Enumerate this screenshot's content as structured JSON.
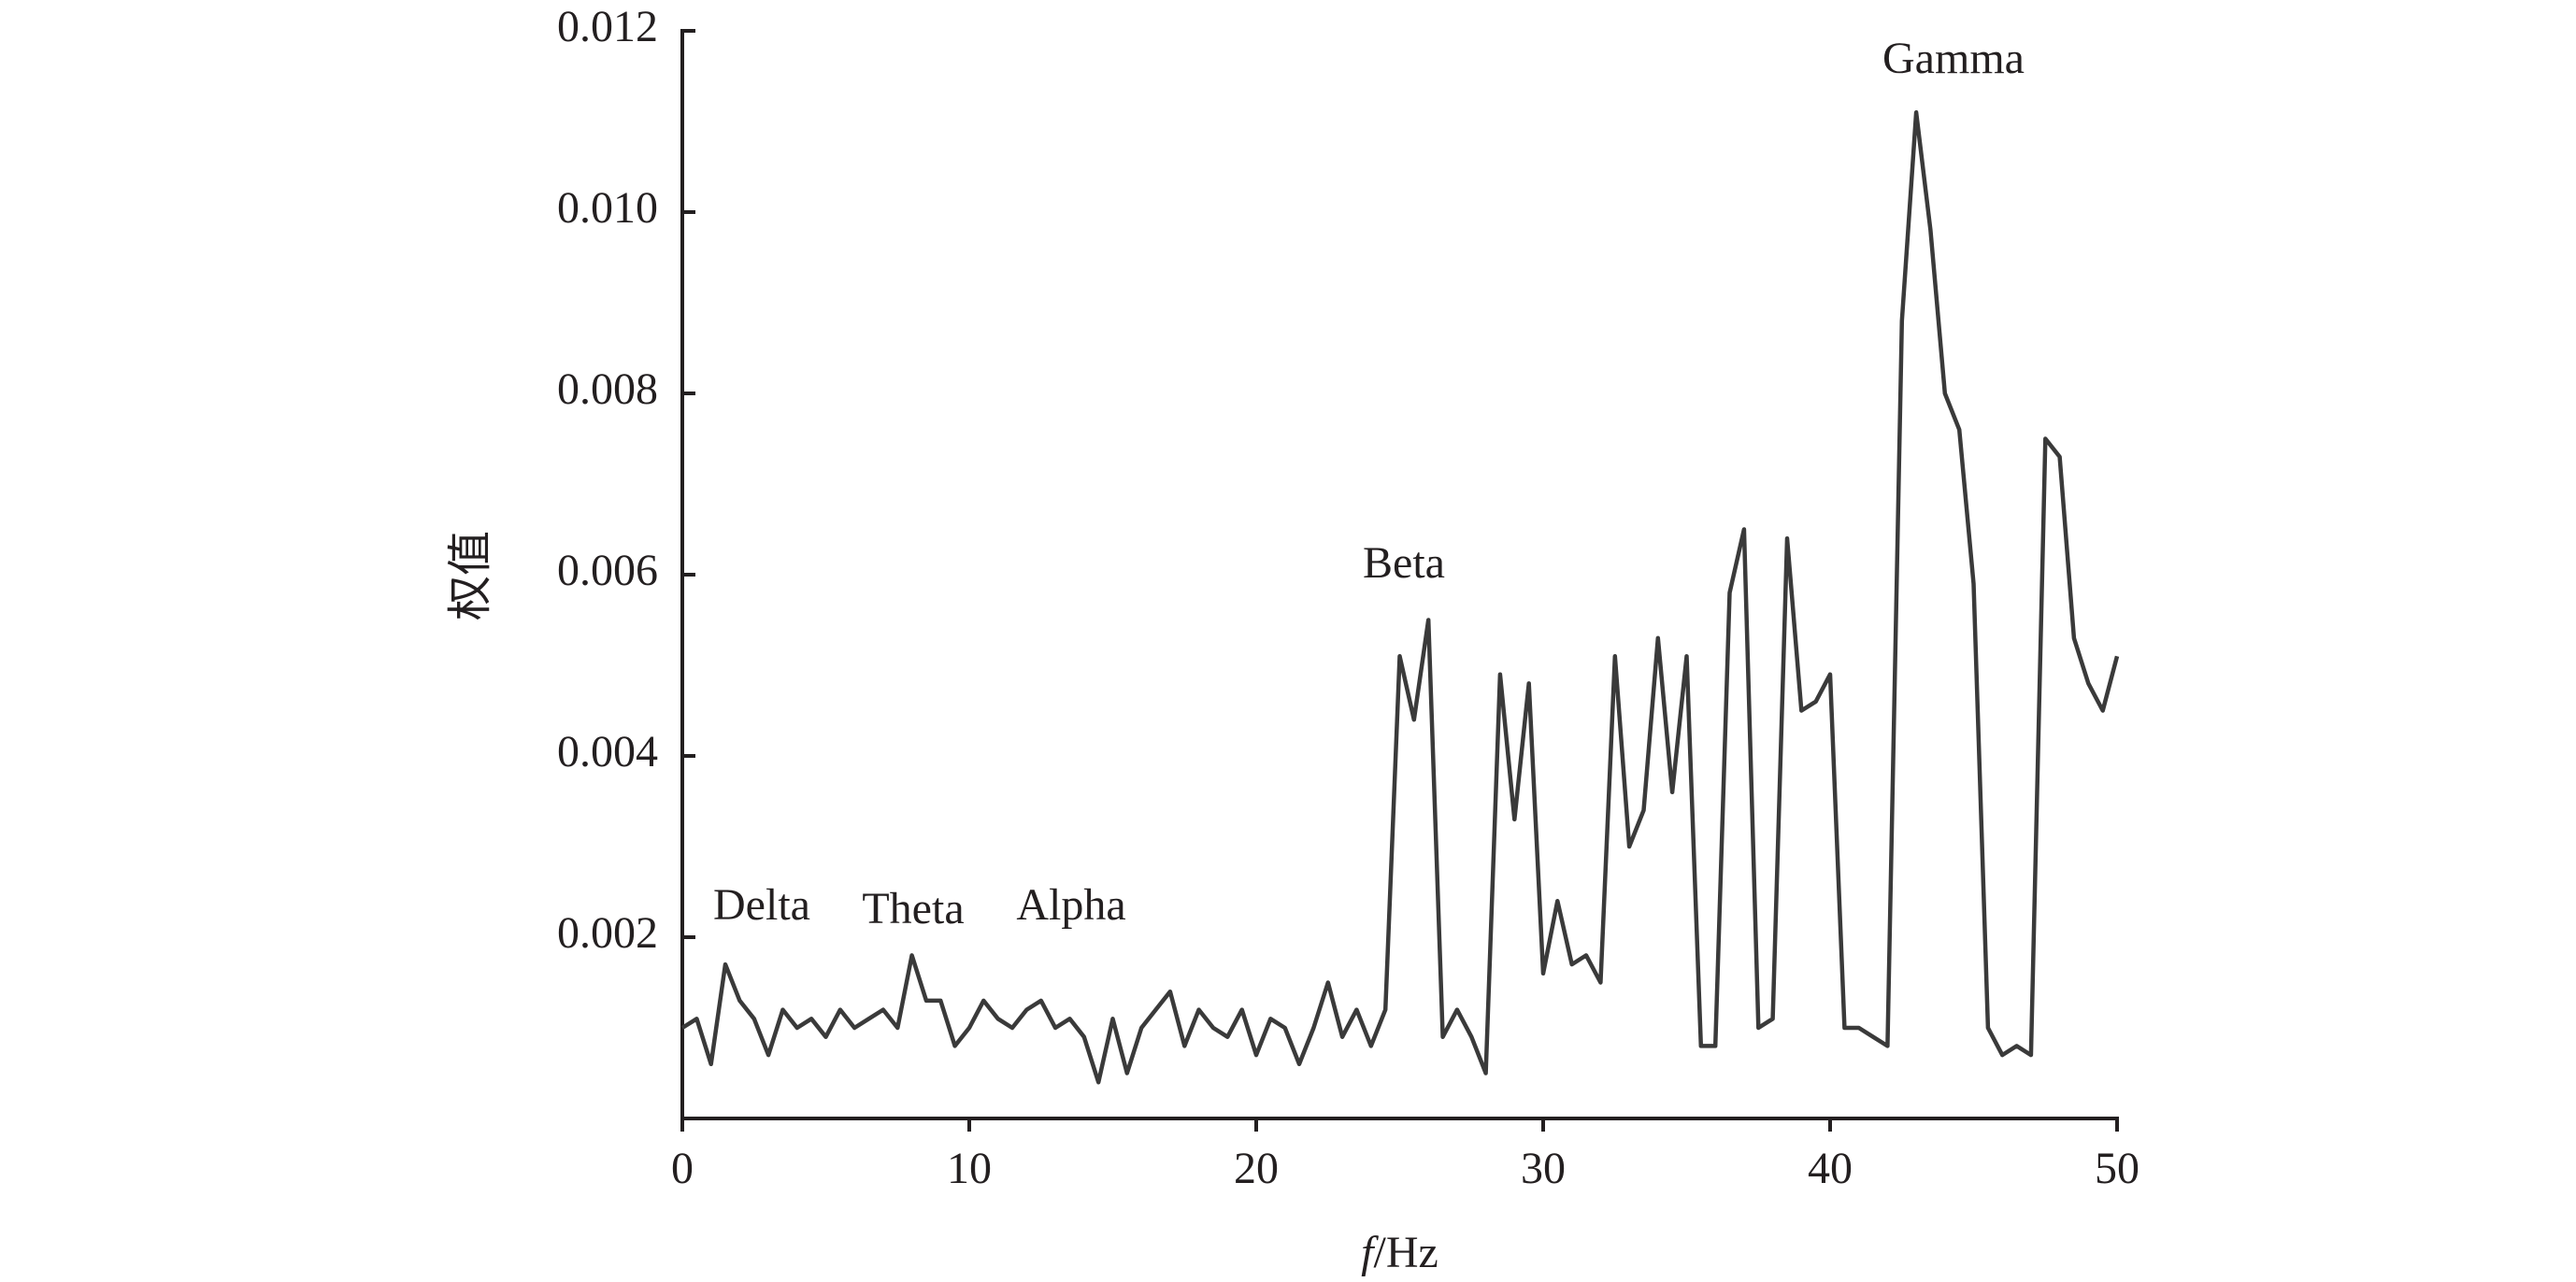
{
  "chart_data": {
    "type": "line",
    "xlabel": "f/Hz",
    "ylabel": "权值",
    "annotations": [
      "Delta",
      "Theta",
      "Alpha",
      "Beta",
      "Gamma"
    ],
    "xlim": [
      0,
      50
    ],
    "xticks": [
      0,
      10,
      20,
      30,
      40,
      50
    ],
    "ylim": [
      0,
      0.012
    ],
    "yticks": [
      0.002,
      0.004,
      0.006,
      0.008,
      {
        "value": 0.01,
        "label": "0.010"
      },
      0.012
    ],
    "grid": false,
    "series": [
      {
        "color": "#3a3a3a",
        "x": [
          0,
          0.5,
          1,
          1.5,
          2,
          2.5,
          3,
          3.5,
          4,
          4.5,
          5,
          5.5,
          6,
          6.5,
          7,
          7.5,
          8,
          8.5,
          9,
          9.5,
          10,
          10.5,
          11,
          11.5,
          12,
          12.5,
          13,
          13.5,
          14,
          14.5,
          15,
          15.5,
          16,
          16.5,
          17,
          17.5,
          18,
          18.5,
          19,
          19.5,
          20,
          20.5,
          21,
          21.5,
          22,
          22.5,
          23,
          23.5,
          24,
          24.5,
          25,
          25.5,
          26,
          26.5,
          27,
          27.5,
          28,
          28.5,
          29,
          29.5,
          30,
          30.5,
          31,
          31.5,
          32,
          32.5,
          33,
          33.5,
          34,
          34.5,
          35,
          35.5,
          36,
          36.5,
          37,
          37.5,
          38,
          38.5,
          39,
          39.5,
          40,
          40.5,
          41,
          41.5,
          42,
          42.5,
          43,
          43.5,
          44,
          44.5,
          45,
          45.5,
          46,
          46.5,
          47,
          47.5,
          48,
          48.5,
          49,
          49.5,
          50
        ],
        "values": [
          0.001,
          0.0011,
          0.0006,
          0.0017,
          0.0013,
          0.0011,
          0.0007,
          0.0012,
          0.001,
          0.0011,
          0.0009,
          0.0012,
          0.001,
          0.0011,
          0.0012,
          0.001,
          0.0018,
          0.0013,
          0.0013,
          0.0008,
          0.001,
          0.0013,
          0.0011,
          0.001,
          0.0012,
          0.0013,
          0.001,
          0.0011,
          0.0009,
          0.0004,
          0.0011,
          0.0005,
          0.001,
          0.0012,
          0.0014,
          0.0008,
          0.0012,
          0.001,
          0.0009,
          0.0012,
          0.0007,
          0.0011,
          0.001,
          0.0006,
          0.001,
          0.0015,
          0.0009,
          0.0012,
          0.0008,
          0.0012,
          0.0051,
          0.0044,
          0.0055,
          0.0009,
          0.0012,
          0.0009,
          0.0005,
          0.0049,
          0.0033,
          0.0048,
          0.0016,
          0.0024,
          0.0017,
          0.0018,
          0.0015,
          0.0051,
          0.003,
          0.0034,
          0.0053,
          0.0036,
          0.0051,
          0.0008,
          0.0008,
          0.0058,
          0.0065,
          0.001,
          0.0011,
          0.0064,
          0.0045,
          0.0046,
          0.0049,
          0.001,
          0.001,
          0.0009,
          0.0008,
          0.0088,
          0.0111,
          0.0098,
          0.008,
          0.0076,
          0.0059,
          0.001,
          0.0007,
          0.0008,
          0.0007,
          0.0075,
          0.0073,
          0.0053,
          0.0048,
          0.0045,
          0.0051
        ]
      }
    ]
  }
}
